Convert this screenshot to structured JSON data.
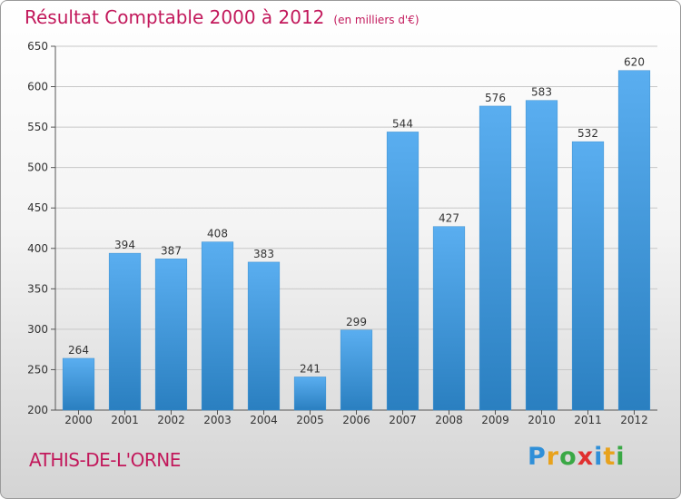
{
  "header": {
    "title": "Résultat Comptable 2000 à 2012",
    "subtitle": "(en milliers d'€)"
  },
  "footer": {
    "commune": "ATHIS-DE-L'ORNE",
    "brand": "Proxiti",
    "brand_letters": [
      {
        "char": "P",
        "color": "#2f8fd8"
      },
      {
        "char": "r",
        "color": "#e8a21c"
      },
      {
        "char": "o",
        "color": "#3aa845"
      },
      {
        "char": "x",
        "color": "#e03030"
      },
      {
        "char": "i",
        "color": "#2f8fd8"
      },
      {
        "char": "t",
        "color": "#e8a21c"
      },
      {
        "char": "i",
        "color": "#3aa845"
      }
    ]
  },
  "colors": {
    "bar_top": "#5aaef0",
    "bar_bottom": "#2a7fc0",
    "accent": "#c2185b"
  },
  "chart_data": {
    "type": "bar",
    "title": "Résultat Comptable 2000 à 2012",
    "xlabel": "",
    "ylabel": "",
    "categories": [
      "2000",
      "2001",
      "2002",
      "2003",
      "2004",
      "2005",
      "2006",
      "2007",
      "2008",
      "2009",
      "2010",
      "2011",
      "2012"
    ],
    "values": [
      264,
      394,
      387,
      408,
      383,
      241,
      299,
      544,
      427,
      576,
      583,
      532,
      620
    ],
    "ylim": [
      200,
      650
    ],
    "yticks": [
      200,
      250,
      300,
      350,
      400,
      450,
      500,
      550,
      600,
      650
    ],
    "grid": true
  }
}
